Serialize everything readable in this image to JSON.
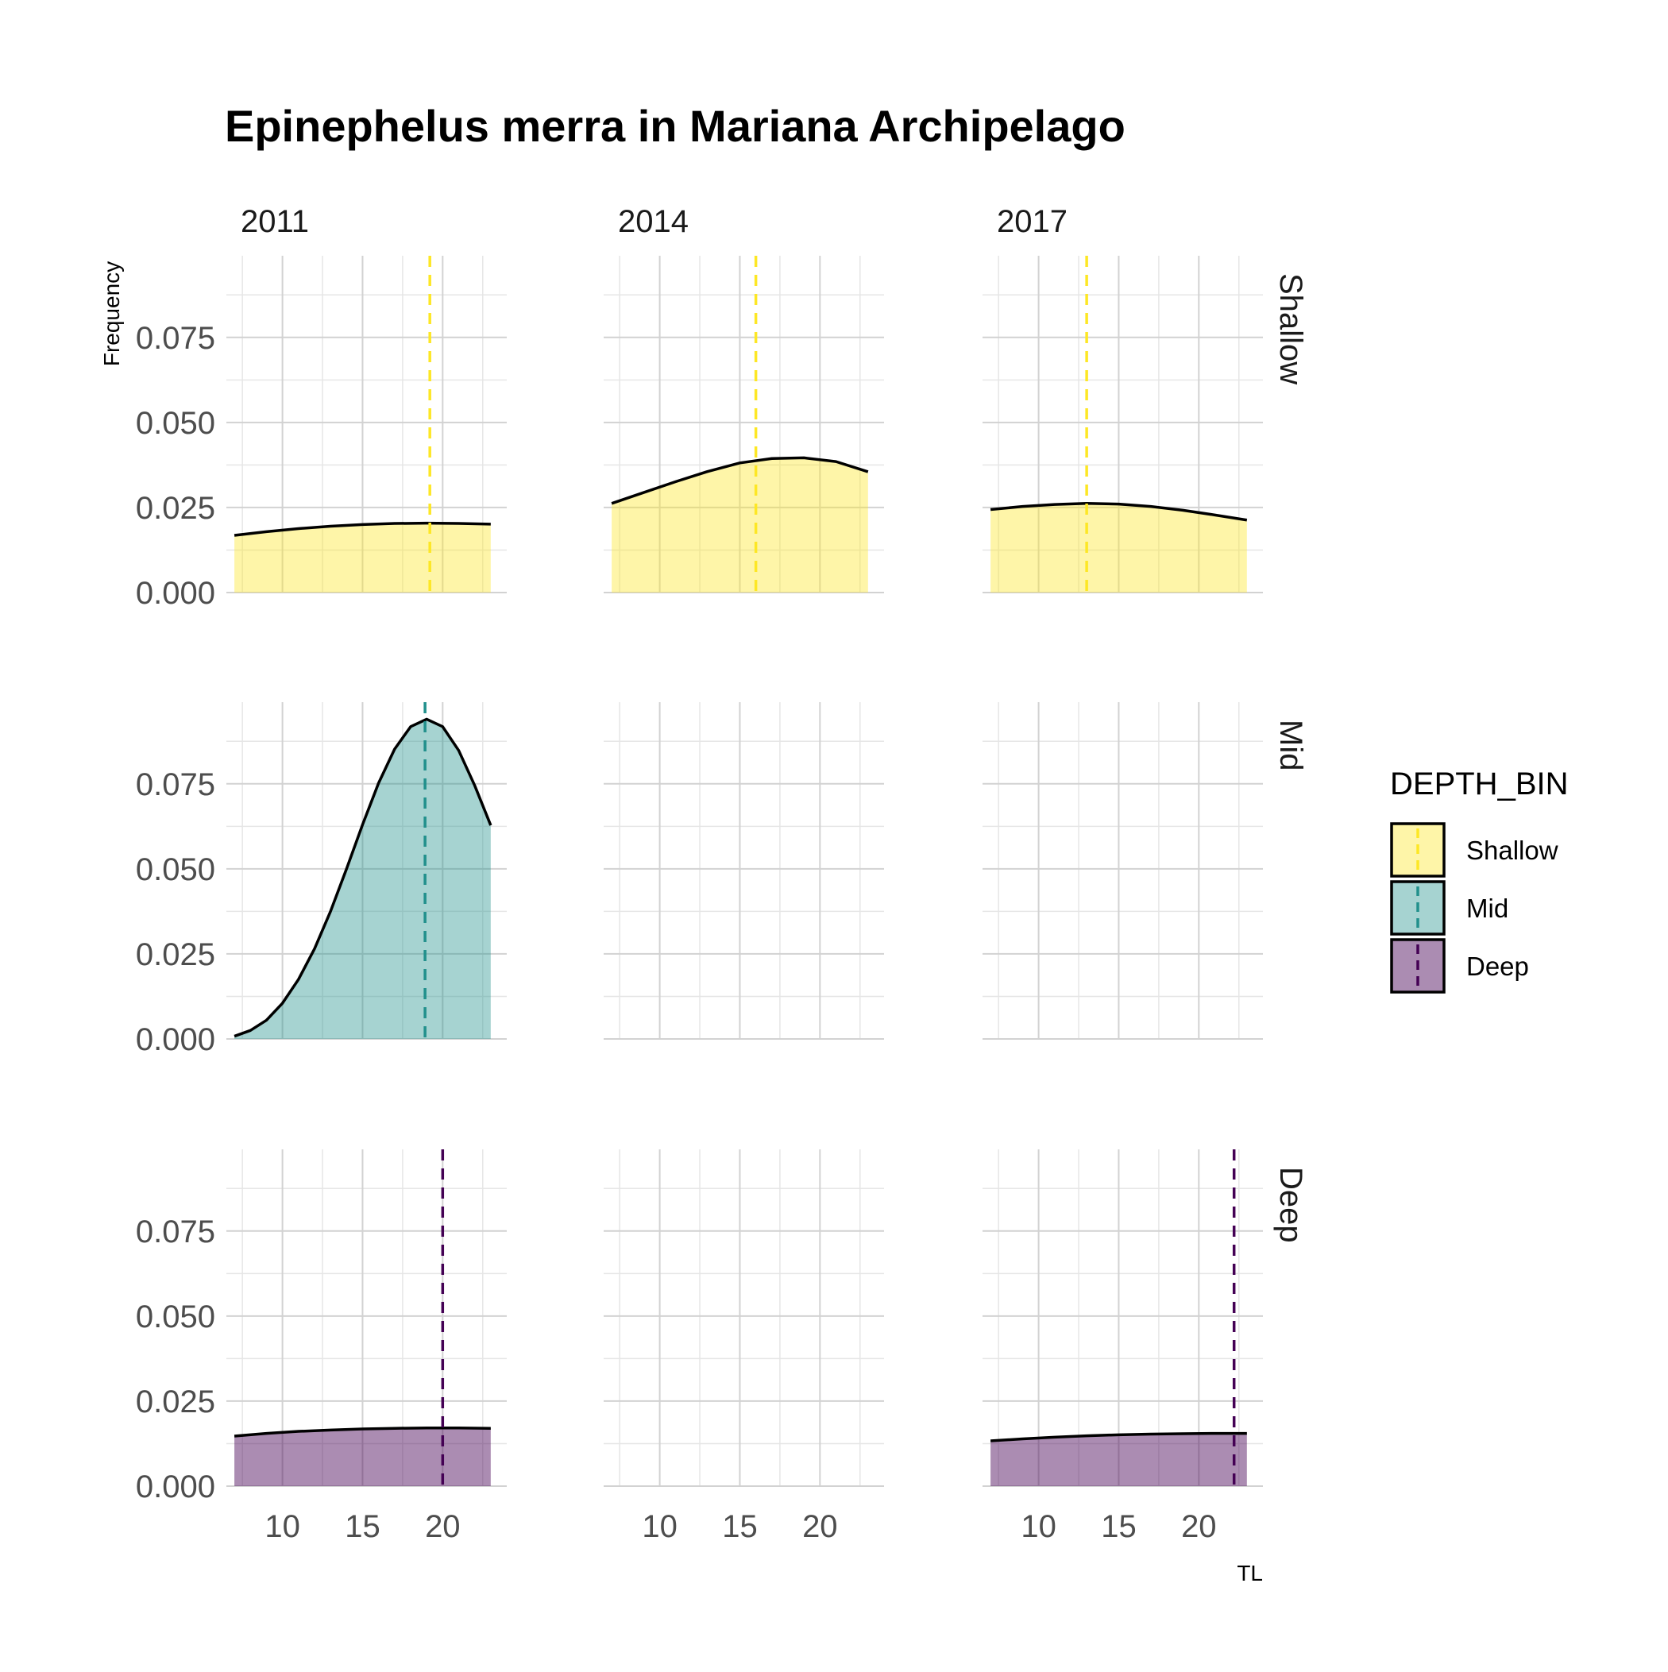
{
  "chart_data": {
    "type": "area",
    "title": "Epinephelus merra in Mariana Archipelago",
    "xlabel": "TL",
    "ylabel": "Frequency",
    "col_facets": [
      "2011",
      "2014",
      "2017"
    ],
    "row_facets": [
      "Shallow",
      "Mid",
      "Deep"
    ],
    "xlim": [
      6.5,
      24
    ],
    "ylim": [
      0,
      0.099
    ],
    "x_ticks": [
      10,
      15,
      20
    ],
    "y_ticks": [
      0,
      0.025,
      0.05,
      0.075
    ],
    "x_tick_labels": [
      "10",
      "15",
      "20"
    ],
    "y_tick_labels": [
      "0.000",
      "0.025",
      "0.050",
      "0.075"
    ],
    "grid": true,
    "legend": {
      "title": "DEPTH_BIN",
      "position": "right",
      "items": [
        {
          "label": "Shallow",
          "color": "#fde725"
        },
        {
          "label": "Mid",
          "color": "#21908c"
        },
        {
          "label": "Deep",
          "color": "#440154"
        }
      ]
    },
    "panels": [
      {
        "year": "2011",
        "depth": "Shallow",
        "color": "#fde725",
        "mean_line": 19.2,
        "x": [
          7,
          9,
          11,
          13,
          15,
          17,
          19,
          21,
          23
        ],
        "y": [
          0.0168,
          0.0179,
          0.0188,
          0.0195,
          0.02,
          0.0203,
          0.0204,
          0.0203,
          0.0201
        ]
      },
      {
        "year": "2014",
        "depth": "Shallow",
        "color": "#fde725",
        "mean_line": 16.0,
        "x": [
          7,
          9,
          11,
          13,
          15,
          17,
          19,
          21,
          23
        ],
        "y": [
          0.0262,
          0.0294,
          0.0326,
          0.0356,
          0.0381,
          0.0394,
          0.0396,
          0.0385,
          0.0355
        ]
      },
      {
        "year": "2017",
        "depth": "Shallow",
        "color": "#fde725",
        "mean_line": 13.0,
        "x": [
          7,
          9,
          11,
          13,
          15,
          17,
          19,
          21,
          23
        ],
        "y": [
          0.0244,
          0.0253,
          0.0259,
          0.0262,
          0.026,
          0.0253,
          0.0242,
          0.0228,
          0.0213
        ]
      },
      {
        "year": "2011",
        "depth": "Mid",
        "color": "#21908c",
        "mean_line": 18.9,
        "x": [
          7,
          8,
          9,
          10,
          11,
          12,
          13,
          14,
          15,
          16,
          17,
          18,
          19,
          20,
          21,
          22,
          23
        ],
        "y": [
          0.0008,
          0.0025,
          0.0055,
          0.0105,
          0.0175,
          0.0265,
          0.0375,
          0.05,
          0.063,
          0.0752,
          0.0852,
          0.0918,
          0.094,
          0.0918,
          0.0848,
          0.0745,
          0.0628
        ]
      },
      {
        "year": "2014",
        "depth": "Mid",
        "color": "#21908c",
        "mean_line": null,
        "x": [],
        "y": []
      },
      {
        "year": "2017",
        "depth": "Mid",
        "color": "#21908c",
        "mean_line": null,
        "x": [],
        "y": []
      },
      {
        "year": "2011",
        "depth": "Deep",
        "color": "#440154",
        "mean_line": 20.0,
        "x": [
          7,
          9,
          11,
          13,
          15,
          17,
          19,
          21,
          23
        ],
        "y": [
          0.0147,
          0.0155,
          0.0161,
          0.0165,
          0.0168,
          0.017,
          0.0171,
          0.0171,
          0.017
        ]
      },
      {
        "year": "2014",
        "depth": "Deep",
        "color": "#440154",
        "mean_line": null,
        "x": [],
        "y": []
      },
      {
        "year": "2017",
        "depth": "Deep",
        "color": "#440154",
        "mean_line": 22.2,
        "x": [
          7,
          9,
          11,
          13,
          15,
          17,
          19,
          21,
          23
        ],
        "y": [
          0.0133,
          0.0139,
          0.0144,
          0.0148,
          0.0151,
          0.0153,
          0.0154,
          0.0155,
          0.0155
        ]
      }
    ]
  }
}
